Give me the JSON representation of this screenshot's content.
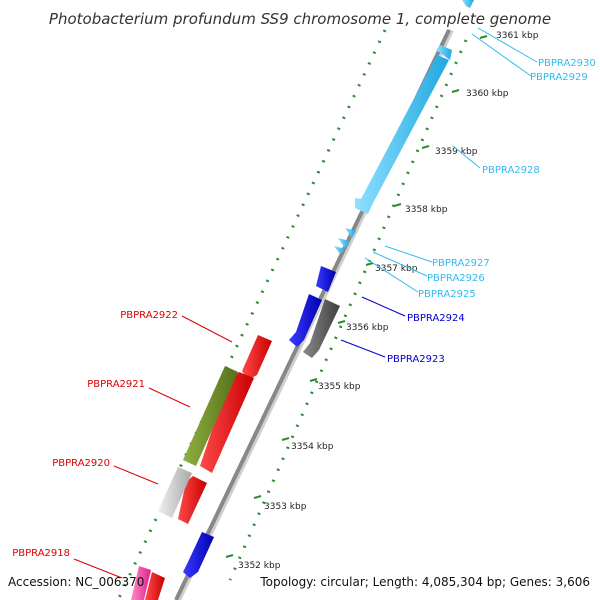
{
  "header": {
    "title": "Photobacterium profundum SS9 chromosome 1, complete genome"
  },
  "footer": {
    "accession": "Accession: NC_006370",
    "summary": "Topology: circular; Length: 4,085,304 bp; Genes: 3,606"
  },
  "colors": {
    "backbone": "#888888",
    "dotted_track": "#2e8b2e",
    "label_red": "#dd0000",
    "label_blue": "#0000cc",
    "label_cyan": "#33bbee",
    "tick_text": "#222222"
  },
  "ticks": [
    {
      "label": "3361 kbp"
    },
    {
      "label": "3360 kbp"
    },
    {
      "label": "3359 kbp"
    },
    {
      "label": "3358 kbp"
    },
    {
      "label": "3357 kbp"
    },
    {
      "label": "3356 kbp"
    },
    {
      "label": "3355 kbp"
    },
    {
      "label": "3354 kbp"
    },
    {
      "label": "3353 kbp"
    },
    {
      "label": "3352 kbp"
    }
  ],
  "genes": [
    {
      "label": "PBPRA2930",
      "color": "#33bbee",
      "strand": "+"
    },
    {
      "label": "PBPRA2929",
      "color": "#33bbee",
      "strand": "+"
    },
    {
      "label": "PBPRA2928",
      "color": "#33bbee",
      "strand": "+"
    },
    {
      "label": "PBPRA2927",
      "color": "#33bbee",
      "strand": "+"
    },
    {
      "label": "PBPRA2926",
      "color": "#33bbee",
      "strand": "+"
    },
    {
      "label": "PBPRA2925",
      "color": "#33bbee",
      "strand": "+"
    },
    {
      "label": "PBPRA2924",
      "color": "#0000dd",
      "strand": "+"
    },
    {
      "label": "PBPRA2923",
      "color": "#555555",
      "strand": "+"
    },
    {
      "label": "PBPRA2922",
      "color": "#ee0000",
      "strand": "-"
    },
    {
      "label": "PBPRA2921",
      "color": "#6b8e23",
      "strand": "-"
    },
    {
      "label": "PBPRA2920",
      "color": "#cccccc",
      "strand": "-"
    },
    {
      "label": "PBPRA2918",
      "color": "#ee3399",
      "strand": "-"
    }
  ]
}
